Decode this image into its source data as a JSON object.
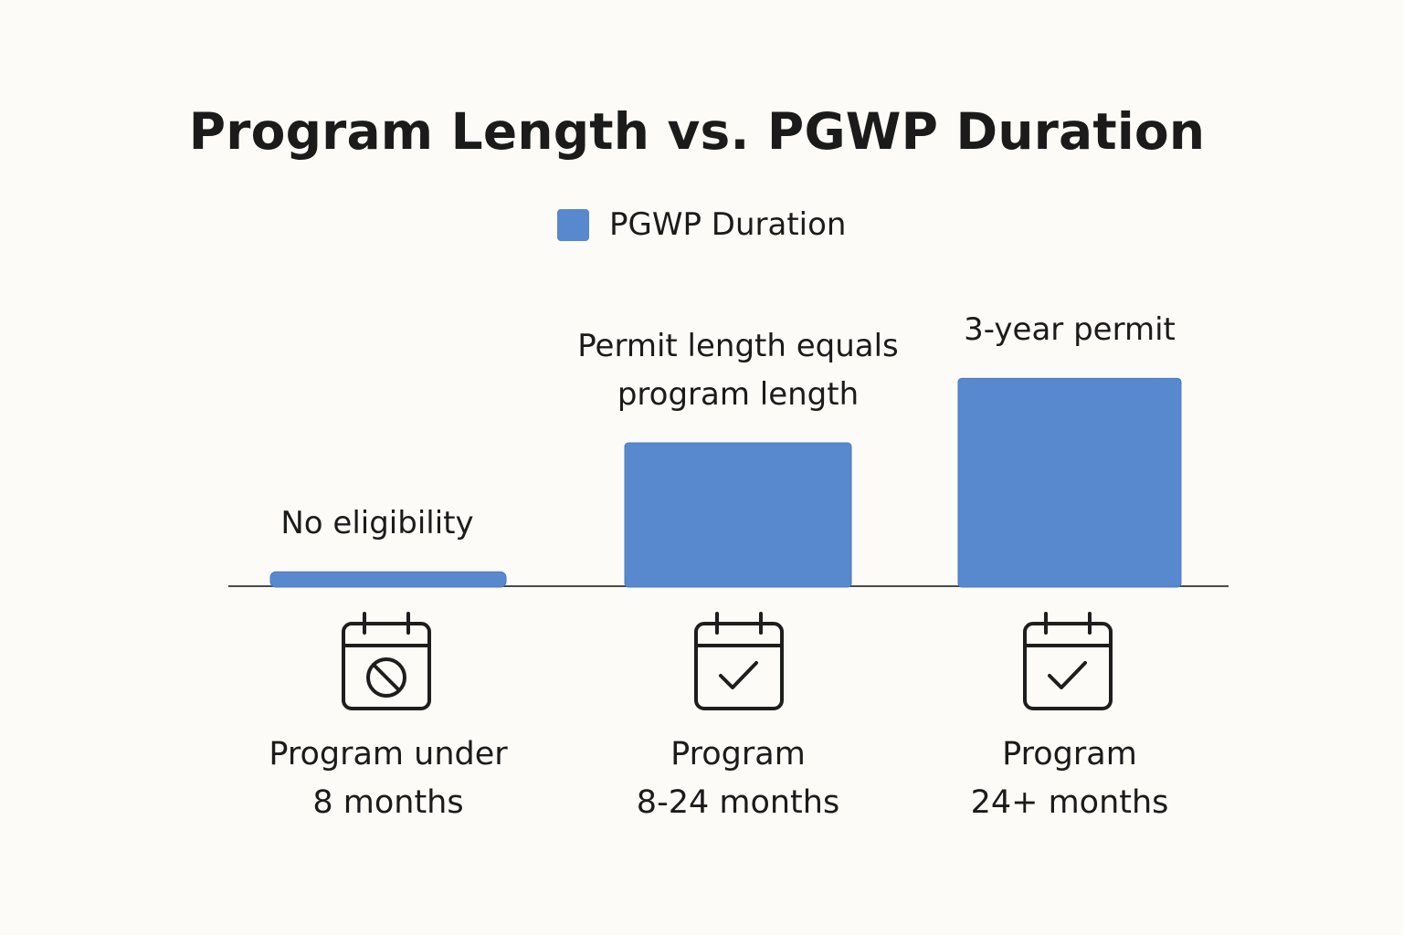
{
  "chart_data": {
    "type": "bar",
    "title": "Program Length vs. PGWP Duration",
    "legend": {
      "placement": "top-center"
    },
    "categories": [
      "Program under\n8 months",
      "Program\n8-24 months",
      "Program\n24+ months"
    ],
    "series": [
      {
        "name": "PGWP Duration",
        "color": "#5889cf",
        "values": [
          0.1,
          1,
          1.45
        ],
        "annotations": [
          "No eligibility",
          "Permit length equals\nprogram length",
          "3-year permit"
        ]
      }
    ],
    "ylim": [
      0,
      2
    ],
    "grid": false,
    "icons": [
      "calendar-blocked-icon",
      "calendar-check-icon",
      "calendar-check-icon"
    ]
  }
}
